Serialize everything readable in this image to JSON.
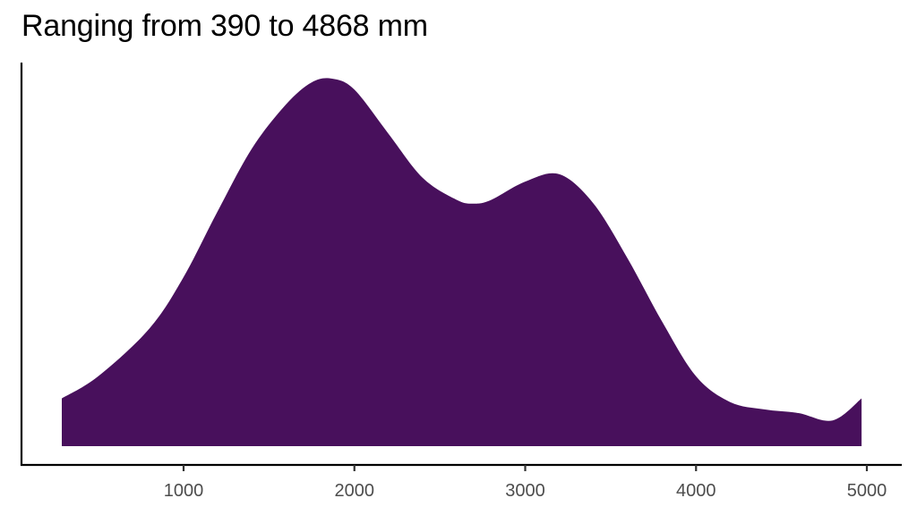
{
  "chart_data": {
    "type": "area",
    "subtype": "density",
    "title": "Ranging from 390 to 4868 mm",
    "xlabel": "",
    "ylabel": "",
    "xlim": [
      287,
      4969
    ],
    "x_ticks": [
      1000,
      2000,
      3000,
      4000,
      5000
    ],
    "x_tick_labels": [
      "1000",
      "2000",
      "3000",
      "4000",
      "5000"
    ],
    "y_ticks": [],
    "grid": false,
    "legend": null,
    "fill_color": "#48105C",
    "series": [
      {
        "name": "density",
        "x": [
          287,
          500,
          800,
          1000,
          1200,
          1400,
          1600,
          1750,
          1870,
          2000,
          2200,
          2400,
          2600,
          2700,
          2800,
          3000,
          3200,
          3400,
          3600,
          3800,
          4000,
          4200,
          4400,
          4600,
          4800,
          4969
        ],
        "y": [
          0.13,
          0.19,
          0.32,
          0.46,
          0.64,
          0.81,
          0.93,
          0.99,
          1.0,
          0.97,
          0.85,
          0.73,
          0.67,
          0.66,
          0.67,
          0.72,
          0.74,
          0.66,
          0.51,
          0.34,
          0.19,
          0.12,
          0.1,
          0.09,
          0.07,
          0.13
        ]
      }
    ],
    "y_units": "relative density (peak normalized to 1)"
  }
}
